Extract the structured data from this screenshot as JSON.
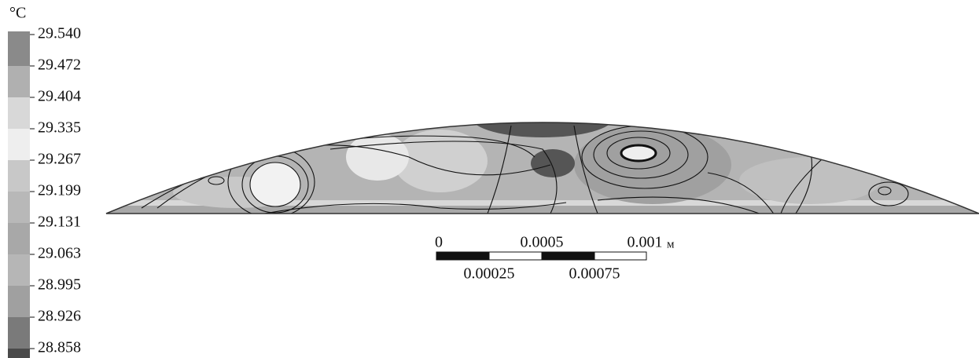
{
  "legend": {
    "unit": "°C",
    "ticks": [
      "29.540",
      "29.472",
      "29.404",
      "29.335",
      "29.267",
      "29.199",
      "29.131",
      "29.063",
      "28.995",
      "28.926",
      "28.858"
    ]
  },
  "scale_bar": {
    "labels_top": [
      "0",
      "0.0005",
      "0.001"
    ],
    "unit": "м",
    "labels_bottom": [
      "0.00025",
      "0.00075"
    ]
  }
}
